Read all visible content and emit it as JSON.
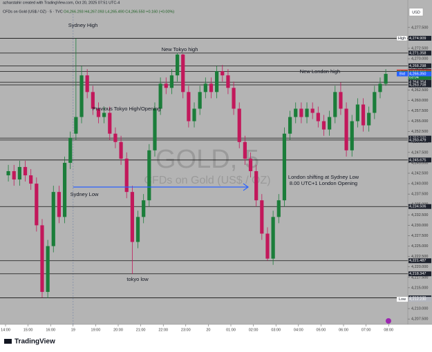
{
  "chart_data": {
    "type": "candlestick",
    "title": "CFDs on Gold (US$ / OZ) · 5 · TVC",
    "ohlc_header": "O4,266.293 H4,267.093 L4,265.490 C4,266.550 +0.160 (+0.00%)",
    "credit": "azharstahir created with TradingView.com, Oct 20, 2025 07:51 UTC-4",
    "currency": "USD",
    "watermark": "GOLD, 5",
    "watermark_sub": "CFDs on Gold (US$ / OZ)",
    "brand": "TradingView",
    "up_color": "#1b7d3a",
    "down_color": "#c2185b",
    "categories": [
      "14:00",
      "15:00",
      "16:00",
      "19",
      "19:00",
      "20:00",
      "21:00",
      "22:00",
      "23:00",
      "20",
      "01:00",
      "02:00",
      "03:00",
      "04:00",
      "05:00",
      "06:00",
      "07:00",
      "08:00"
    ],
    "open": [
      4242,
      4243,
      4241,
      4244,
      4242,
      4240,
      4230,
      4214,
      4225,
      4238,
      4232,
      4245,
      4252,
      4256,
      4266,
      4262,
      4258,
      4256,
      4257,
      4252,
      4250,
      4246,
      4238,
      4226,
      4232,
      4236,
      4248,
      4258,
      4264,
      4263,
      4266,
      4271,
      4262,
      4255,
      4258,
      4262,
      4264,
      4262,
      4267,
      4266,
      4263,
      4258,
      4250,
      4246,
      4243,
      4236,
      4228,
      4222,
      4232,
      4236,
      4252,
      4256,
      4258,
      4256,
      4258,
      4257,
      4255,
      4253,
      4256,
      4262,
      4258,
      4248,
      4255,
      4259,
      4254,
      4257,
      4262,
      4264
    ],
    "high": [
      4244.5,
      4244.5,
      4245.5,
      4245.5,
      4243.5,
      4241.5,
      4231.5,
      4226.5,
      4239.5,
      4239.5,
      4246.5,
      4252.5,
      4274.9,
      4268.3,
      4267.5,
      4263.5,
      4259.5,
      4258.5,
      4258.5,
      4253.5,
      4251.5,
      4247.5,
      4239.5,
      4233.5,
      4237.5,
      4249.5,
      4259.5,
      4265.5,
      4265.5,
      4267.5,
      4271.4,
      4271.2,
      4263.5,
      4259.5,
      4263.5,
      4265.5,
      4265.5,
      4268.3,
      4268.5,
      4267.5,
      4264.5,
      4259.5,
      4251.5,
      4247.5,
      4244.5,
      4237.5,
      4229.5,
      4233.5,
      4237.5,
      4253.5,
      4257.5,
      4259.5,
      4259.5,
      4259.5,
      4259.5,
      4258.5,
      4256.5,
      4257.5,
      4263.5,
      4264.3,
      4259.5,
      4256.5,
      4260.5,
      4260.5,
      4258.5,
      4263.5,
      4265.5,
      4267.5
    ],
    "low": [
      4240.5,
      4239.5,
      4239.5,
      4240.5,
      4238.5,
      4228.5,
      4212.6,
      4212.5,
      4223.5,
      4230.5,
      4230.5,
      4243.5,
      4250.5,
      4254.5,
      4260.5,
      4256.5,
      4254.5,
      4254.5,
      4250.5,
      4248.5,
      4244.5,
      4236.5,
      4218.3,
      4224.5,
      4230.5,
      4234.5,
      4246.5,
      4256.5,
      4261.5,
      4261.5,
      4264.5,
      4260.5,
      4253.5,
      4253.5,
      4256.5,
      4260.5,
      4260.5,
      4260.5,
      4264.5,
      4261.5,
      4256.5,
      4248.5,
      4244.5,
      4241.5,
      4234.5,
      4226.5,
      4221.5,
      4220.5,
      4230.5,
      4234.5,
      4250.5,
      4254.5,
      4254.5,
      4254.5,
      4255.5,
      4253.5,
      4251.5,
      4251.5,
      4254.5,
      4256.5,
      4246.5,
      4246.5,
      4253.5,
      4252.5,
      4252.5,
      4255.5,
      4260.5,
      4263.5
    ],
    "close": [
      4243,
      4241,
      4244,
      4242,
      4240,
      4230,
      4214,
      4225,
      4238,
      4232,
      4245,
      4251,
      4256,
      4266,
      4262,
      4258,
      4256,
      4257,
      4252,
      4250,
      4246,
      4238,
      4226,
      4232,
      4236,
      4248,
      4258,
      4264,
      4263,
      4266,
      4271,
      4262,
      4255,
      4258,
      4262,
      4264,
      4262,
      4267,
      4266,
      4263,
      4258,
      4250,
      4246,
      4243,
      4236,
      4228,
      4222,
      4232,
      4236,
      4252,
      4256,
      4258,
      4256,
      4258,
      4257,
      4255,
      4253,
      4256,
      4262,
      4258,
      4248,
      4255,
      4259,
      4254,
      4257,
      4262,
      4264,
      4266.354
    ],
    "ylim": [
      4206.2,
      4284.1
    ],
    "yticks": [
      {
        "value": 4207.5,
        "label": "4,207.500"
      },
      {
        "value": 4210,
        "label": "4,210.000"
      },
      {
        "value": 4212.5,
        "label": "4,212.500"
      },
      {
        "value": 4215,
        "label": "4,215.000"
      },
      {
        "value": 4217.5,
        "label": "4,217.500"
      },
      {
        "value": 4220,
        "label": "4,220.000"
      },
      {
        "value": 4222.5,
        "label": "4,222.500"
      },
      {
        "value": 4225,
        "label": "4,225.000"
      },
      {
        "value": 4227.5,
        "label": "4,227.500"
      },
      {
        "value": 4230,
        "label": "4,230.000"
      },
      {
        "value": 4232.5,
        "label": "4,232.500"
      },
      {
        "value": 4235,
        "label": "4,235.000"
      },
      {
        "value": 4237.5,
        "label": "4,237.500"
      },
      {
        "value": 4240,
        "label": "4,240.000"
      },
      {
        "value": 4242.5,
        "label": "4,242.500"
      },
      {
        "value": 4245,
        "label": "4,245.000"
      },
      {
        "value": 4247.5,
        "label": "4,247.500"
      },
      {
        "value": 4250,
        "label": "4,250.000"
      },
      {
        "value": 4252.5,
        "label": "4,252.500"
      },
      {
        "value": 4255,
        "label": "4,255.000"
      },
      {
        "value": 4257.5,
        "label": "4,257.500"
      },
      {
        "value": 4260,
        "label": "4,260.000"
      },
      {
        "value": 4262.5,
        "label": "4,262.500"
      },
      {
        "value": 4265,
        "label": "4,265.000"
      },
      {
        "value": 4267.5,
        "label": "4,267.500"
      },
      {
        "value": 4270,
        "label": "4,270.000"
      },
      {
        "value": 4272.5,
        "label": "4,272.500"
      },
      {
        "value": 4275,
        "label": "4,275.000"
      },
      {
        "value": 4277.5,
        "label": "4,277.500"
      }
    ],
    "levels": [
      {
        "value": 4274.909,
        "label": "4,274.909",
        "name": "High"
      },
      {
        "value": 4271.358,
        "label": "4,271.358"
      },
      {
        "value": 4268.298,
        "label": "4,268.298"
      },
      {
        "value": 4266.944,
        "label": "4,266.944"
      },
      {
        "value": 4264.354,
        "label": "4,264.354"
      },
      {
        "value": 4263.708,
        "label": "4,263.708"
      },
      {
        "value": 4250.93,
        "label": "4,250.930"
      },
      {
        "value": 4250.479,
        "label": "4,250.479"
      },
      {
        "value": 4245.675,
        "label": "4,245.675"
      },
      {
        "value": 4234.506,
        "label": "4,234.506"
      },
      {
        "value": 4221.487,
        "label": "4,221.487"
      },
      {
        "value": 4218.347,
        "label": "4,218.347"
      },
      {
        "value": 4212.57,
        "label": "4,212.570"
      }
    ],
    "price_tags": [
      {
        "name": "Ask",
        "value": 4266.81,
        "label": "4,266.810",
        "color": "#e53935"
      },
      {
        "name": "GOLD",
        "value": 4266.55,
        "label": "4,266.550",
        "color": "#1b7d3a",
        "countdown": "03:04"
      },
      {
        "name": "Bid",
        "value": 4266.35,
        "label": "4,266.350",
        "color": "#2962ff"
      },
      {
        "name": "Low",
        "value": 4212.23,
        "label": "4,212.230",
        "color": "#b2b5be"
      }
    ],
    "annotations": [
      "Sydney High",
      "New Tokyo high",
      "New London high",
      "Previous Tokyo High/Opening",
      "Sydney Low",
      "tokyo low",
      "London shifting at Sydney Low",
      "8.00 UTC+1 London Opening"
    ]
  }
}
